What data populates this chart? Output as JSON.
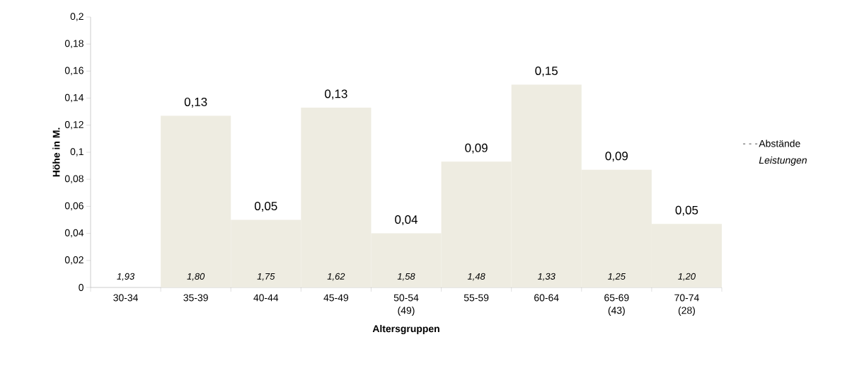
{
  "chart_data": {
    "type": "bar",
    "xlabel": "Altersgruppen",
    "ylabel": "Höhe in M.",
    "categories": [
      "30-34",
      "35-39",
      "40-44",
      "45-49",
      "50-54 (49)",
      "55-59",
      "60-64",
      "65-69 (43)",
      "70-74 (28)"
    ],
    "series": [
      {
        "name": "Abstände",
        "color": "#eeece1",
        "values": [
          0,
          0.127,
          0.05,
          0.133,
          0.04,
          0.093,
          0.15,
          0.087,
          0.047
        ],
        "value_labels": [
          null,
          "0,13",
          "0,05",
          "0,13",
          "0,04",
          "0,09",
          "0,15",
          "0,09",
          "0,05"
        ]
      },
      {
        "name": "Leistungen",
        "values": [
          null,
          null,
          null,
          null,
          null,
          null,
          null,
          null,
          null
        ],
        "value_labels": [
          "1,93",
          "1,80",
          "1,75",
          "1,62",
          "1,58",
          "1,48",
          "1,33",
          "1,25",
          "1,20"
        ]
      }
    ],
    "ylim": [
      0,
      0.2
    ],
    "yticks": [
      0,
      {
        "value": 0.02,
        "label": "0,02"
      },
      {
        "value": 0.04,
        "label": "0,04"
      },
      {
        "value": 0.06,
        "label": "0,06"
      },
      {
        "value": 0.08,
        "label": "0,08"
      },
      {
        "value": 0.1,
        "label": "0,1"
      },
      {
        "value": 0.12,
        "label": "0,12"
      },
      {
        "value": 0.14,
        "label": "0,14"
      },
      {
        "value": 0.16,
        "label": "0,16"
      },
      {
        "value": 0.18,
        "label": "0,18"
      },
      {
        "value": 0.2,
        "label": "0,2"
      }
    ],
    "grid": false,
    "legend": "right"
  }
}
